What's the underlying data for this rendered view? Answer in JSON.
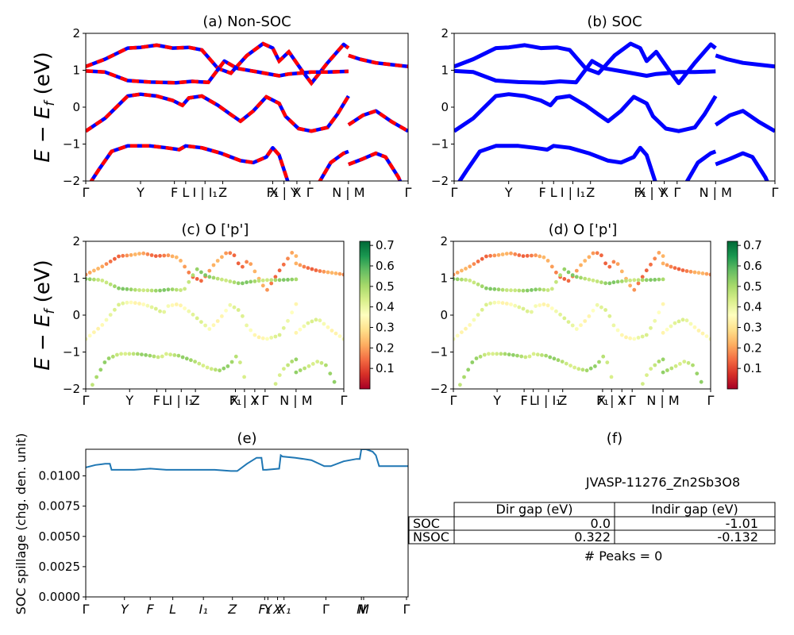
{
  "chart_data": [
    {
      "panel": "a",
      "type": "line",
      "title": "(a) Non-SOC",
      "ylabel": "E − E_f (eV)",
      "ylim": [
        -2,
        2
      ],
      "yticks": [
        "2",
        "1",
        "0",
        "−1",
        "−2"
      ],
      "kpath_labels": [
        "Γ",
        "Y",
        "F",
        "L",
        "I | I₁",
        "Z",
        "F₁",
        "X | Y",
        "X",
        "Γ",
        "N | M",
        "Γ"
      ],
      "kpath_positions": [
        0,
        0.17,
        0.275,
        0.31,
        0.37,
        0.425,
        0.58,
        0.615,
        0.655,
        0.695,
        0.815,
        1.0
      ],
      "series_colors": [
        "#ff0000",
        "#0000ff"
      ],
      "bands": [
        [
          [
            0,
            1.1
          ],
          [
            0.06,
            1.3
          ],
          [
            0.13,
            1.6
          ],
          [
            0.17,
            1.62
          ],
          [
            0.22,
            1.68
          ],
          [
            0.27,
            1.6
          ],
          [
            0.32,
            1.62
          ],
          [
            0.36,
            1.55
          ],
          [
            0.41,
            1.05
          ],
          [
            0.45,
            0.92
          ],
          [
            0.5,
            1.4
          ],
          [
            0.55,
            1.72
          ],
          [
            0.58,
            1.6
          ],
          [
            0.6,
            1.25
          ],
          [
            0.63,
            1.5
          ],
          [
            0.67,
            1.0
          ],
          [
            0.7,
            0.65
          ],
          [
            0.75,
            1.2
          ],
          [
            0.8,
            1.7
          ],
          [
            0.815,
            1.6
          ]
        ],
        [
          [
            0.815,
            1.4
          ],
          [
            0.85,
            1.3
          ],
          [
            0.9,
            1.2
          ],
          [
            0.95,
            1.15
          ],
          [
            1.0,
            1.1
          ]
        ],
        [
          [
            0,
            0.98
          ],
          [
            0.06,
            0.95
          ],
          [
            0.13,
            0.72
          ],
          [
            0.2,
            0.68
          ],
          [
            0.28,
            0.66
          ],
          [
            0.33,
            0.7
          ],
          [
            0.38,
            0.67
          ],
          [
            0.43,
            1.25
          ],
          [
            0.47,
            1.05
          ],
          [
            0.53,
            0.96
          ],
          [
            0.6,
            0.85
          ],
          [
            0.63,
            0.9
          ],
          [
            0.66,
            0.92
          ],
          [
            0.7,
            0.95
          ],
          [
            0.75,
            0.95
          ],
          [
            0.815,
            0.97
          ]
        ],
        [
          [
            0,
            -0.65
          ],
          [
            0.06,
            -0.3
          ],
          [
            0.13,
            0.3
          ],
          [
            0.17,
            0.35
          ],
          [
            0.22,
            0.3
          ],
          [
            0.27,
            0.18
          ],
          [
            0.3,
            0.05
          ],
          [
            0.32,
            0.25
          ],
          [
            0.36,
            0.3
          ],
          [
            0.41,
            0.05
          ],
          [
            0.45,
            -0.2
          ],
          [
            0.48,
            -0.38
          ],
          [
            0.52,
            -0.1
          ],
          [
            0.56,
            0.28
          ],
          [
            0.6,
            0.1
          ],
          [
            0.62,
            -0.25
          ],
          [
            0.66,
            -0.58
          ],
          [
            0.7,
            -0.65
          ],
          [
            0.75,
            -0.55
          ],
          [
            0.78,
            -0.2
          ],
          [
            0.815,
            0.3
          ]
        ],
        [
          [
            0.815,
            -0.48
          ],
          [
            0.86,
            -0.22
          ],
          [
            0.9,
            -0.1
          ],
          [
            0.95,
            -0.4
          ],
          [
            1.0,
            -0.65
          ]
        ],
        [
          [
            0.01,
            -2.1
          ],
          [
            0.04,
            -1.7
          ],
          [
            0.08,
            -1.2
          ],
          [
            0.13,
            -1.05
          ],
          [
            0.2,
            -1.05
          ],
          [
            0.25,
            -1.1
          ],
          [
            0.29,
            -1.15
          ],
          [
            0.31,
            -1.05
          ],
          [
            0.36,
            -1.1
          ],
          [
            0.42,
            -1.25
          ],
          [
            0.48,
            -1.45
          ],
          [
            0.52,
            -1.5
          ],
          [
            0.56,
            -1.35
          ],
          [
            0.58,
            -1.1
          ],
          [
            0.6,
            -1.3
          ],
          [
            0.63,
            -2.1
          ]
        ],
        [
          [
            0.72,
            -2.1
          ],
          [
            0.76,
            -1.5
          ],
          [
            0.8,
            -1.25
          ],
          [
            0.815,
            -1.2
          ]
        ],
        [
          [
            0.815,
            -1.55
          ],
          [
            0.86,
            -1.4
          ],
          [
            0.9,
            -1.25
          ],
          [
            0.93,
            -1.35
          ],
          [
            0.97,
            -1.9
          ],
          [
            0.98,
            -2.1
          ]
        ]
      ]
    },
    {
      "panel": "b",
      "type": "line",
      "title": "(b) SOC",
      "ylim": [
        -2,
        2
      ],
      "yticks": [
        "2",
        "1",
        "0",
        "−1",
        "−2"
      ],
      "kpath_labels": [
        "Γ",
        "Y",
        "F",
        "L",
        "I | I₁",
        "Z",
        "F₁",
        "X | Y",
        "X",
        "Γ",
        "N | M",
        "Γ"
      ],
      "kpath_positions": [
        0,
        0.17,
        0.275,
        0.31,
        0.37,
        0.425,
        0.58,
        0.615,
        0.655,
        0.695,
        0.815,
        1.0
      ],
      "series_colors": [
        "#0000ff"
      ],
      "bands": "same as panel a"
    },
    {
      "panel": "c",
      "type": "scatter",
      "title": "(c)  O ['p']",
      "ylabel": "E − E_f (eV)",
      "ylim": [
        -2,
        2
      ],
      "yticks": [
        "2",
        "1",
        "0",
        "−1",
        "−2"
      ],
      "kpath_labels": [
        "Γ",
        "Y",
        "F",
        "L",
        "I | I₁",
        "Z",
        "F₁",
        "X | Y",
        "X",
        "Γ",
        "N | M",
        "Γ"
      ],
      "kpath_positions": [
        0,
        0.17,
        0.275,
        0.31,
        0.37,
        0.425,
        0.58,
        0.615,
        0.655,
        0.695,
        0.815,
        1.0
      ],
      "colorbar": {
        "ticks": [
          "0.7",
          "0.6",
          "0.5",
          "0.4",
          "0.3",
          "0.2",
          "0.1"
        ],
        "min": 0.0,
        "max": 0.72,
        "colormap": "RdYlGn"
      },
      "band_weights": [
        0.18,
        0.18,
        0.5,
        0.38,
        0.38,
        0.48,
        0.48,
        0.48
      ]
    },
    {
      "panel": "d",
      "type": "scatter",
      "title": "(d) O ['p']",
      "ylim": [
        -2,
        2
      ],
      "yticks": [
        "2",
        "1",
        "0",
        "−1",
        "−2"
      ],
      "kpath_labels": [
        "Γ",
        "Y",
        "F",
        "L",
        "I | I₁",
        "Z",
        "F₁",
        "X | Y",
        "X",
        "Γ",
        "N | M",
        "Γ"
      ],
      "kpath_positions": [
        0,
        0.17,
        0.275,
        0.31,
        0.37,
        0.425,
        0.58,
        0.615,
        0.655,
        0.695,
        0.815,
        1.0
      ],
      "colorbar": {
        "ticks": [
          "0.7",
          "0.6",
          "0.5",
          "0.4",
          "0.3",
          "0.2",
          "0.1"
        ],
        "min": 0.0,
        "max": 0.72,
        "colormap": "RdYlGn"
      },
      "band_weights": [
        0.18,
        0.18,
        0.5,
        0.38,
        0.38,
        0.48,
        0.48,
        0.48
      ]
    },
    {
      "panel": "e",
      "type": "line",
      "title": "(e)",
      "ylabel": "SOC spillage (chg. den. unit)",
      "ylim": [
        0,
        0.0122
      ],
      "yticks": [
        "0.0100",
        "0.0075",
        "0.0050",
        "0.0025",
        "0.0000"
      ],
      "xtick_labels": [
        "Γ",
        "Y",
        "F",
        "L",
        "I₁",
        "Z",
        "F₁",
        "Y",
        "X",
        "X₁",
        "Γ",
        "N",
        "M",
        "Γ"
      ],
      "xtick_positions": [
        0,
        0.12,
        0.2,
        0.27,
        0.365,
        0.455,
        0.555,
        0.565,
        0.595,
        0.615,
        0.745,
        0.855,
        0.862,
        0.995
      ],
      "color": "#1f77b4",
      "x": [
        0,
        0.03,
        0.06,
        0.075,
        0.08,
        0.1,
        0.15,
        0.2,
        0.25,
        0.3,
        0.35,
        0.4,
        0.45,
        0.47,
        0.5,
        0.53,
        0.545,
        0.55,
        0.56,
        0.6,
        0.605,
        0.61,
        0.65,
        0.7,
        0.74,
        0.76,
        0.8,
        0.84,
        0.85,
        0.855,
        0.87,
        0.89,
        0.9,
        0.91,
        0.93,
        0.97,
        1.0
      ],
      "y": [
        0.0107,
        0.0109,
        0.011,
        0.011,
        0.0105,
        0.0105,
        0.0105,
        0.0106,
        0.0105,
        0.0105,
        0.0105,
        0.0105,
        0.0104,
        0.0104,
        0.011,
        0.0115,
        0.0115,
        0.0105,
        0.0105,
        0.0106,
        0.0117,
        0.0116,
        0.0115,
        0.0113,
        0.0108,
        0.0108,
        0.0112,
        0.0114,
        0.0114,
        0.0122,
        0.0122,
        0.012,
        0.0117,
        0.0108,
        0.0108,
        0.0108,
        0.0108
      ]
    }
  ],
  "panel_f": {
    "title": "(f)",
    "material": "JVASP-11276_Zn2Sb3O8",
    "table": {
      "headers": [
        "Dir gap (eV)",
        "Indir gap (eV)"
      ],
      "rows": [
        {
          "label": "SOC",
          "dir": "0.0",
          "indir": "-1.01"
        },
        {
          "label": "NSOC",
          "dir": "0.322",
          "indir": "-0.132"
        }
      ]
    },
    "peaks": "# Peaks = 0"
  }
}
